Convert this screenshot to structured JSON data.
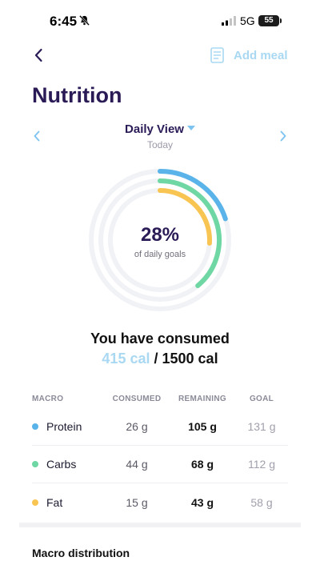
{
  "status": {
    "time": "6:45",
    "network": "5G",
    "battery": "55"
  },
  "header": {
    "add_meal_label": "Add meal"
  },
  "page": {
    "title": "Nutrition"
  },
  "view": {
    "title": "Daily View",
    "subtitle": "Today"
  },
  "progress": {
    "percent_label": "28%",
    "caption": "of daily goals",
    "rings": [
      {
        "name": "Protein",
        "fraction": 0.2,
        "color": "#5ab4ea"
      },
      {
        "name": "Carbs",
        "fraction": 0.39,
        "color": "#6fd7a3"
      },
      {
        "name": "Fat",
        "fraction": 0.26,
        "color": "#f9c552"
      }
    ],
    "track_color": "#f1f2f6"
  },
  "summary": {
    "title": "You have consumed",
    "consumed": "415 cal",
    "separator": " / ",
    "goal": "1500 cal"
  },
  "macros": {
    "headers": {
      "macro": "MACRO",
      "consumed": "CONSUMED",
      "remaining": "REMAINING",
      "goal": "GOAL"
    },
    "rows": [
      {
        "name": "Protein",
        "color": "#5ab4ea",
        "consumed": "26 g",
        "remaining": "105 g",
        "goal": "131 g"
      },
      {
        "name": "Carbs",
        "color": "#6fd7a3",
        "consumed": "44 g",
        "remaining": "68 g",
        "goal": "112 g"
      },
      {
        "name": "Fat",
        "color": "#f9c552",
        "consumed": "15 g",
        "remaining": "43 g",
        "goal": "58 g"
      }
    ]
  },
  "distribution": {
    "title": "Macro distribution"
  }
}
